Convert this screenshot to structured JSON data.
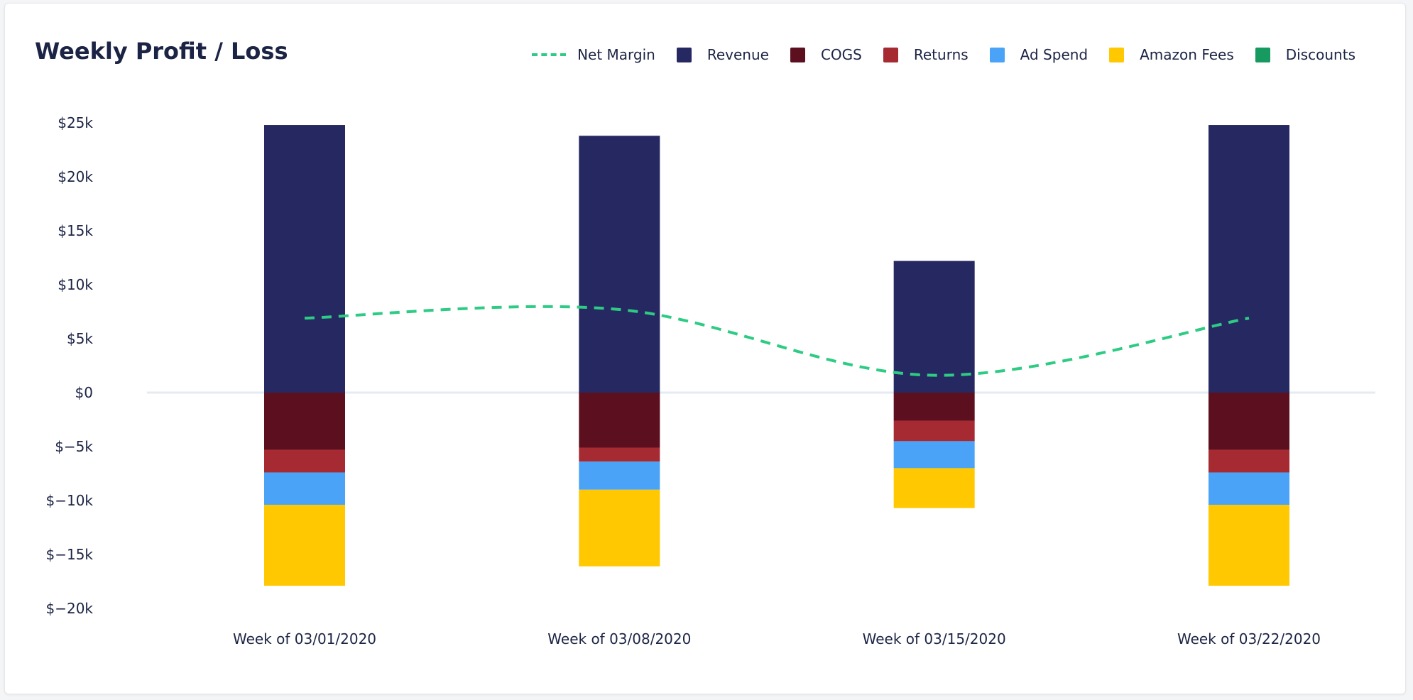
{
  "chart_data": {
    "type": "bar",
    "title": "Weekly Profit / Loss",
    "categories": [
      "Week of 03/01/2020",
      "Week of 03/08/2020",
      "Week of 03/15/2020",
      "Week of 03/22/2020"
    ],
    "series": [
      {
        "name": "Revenue",
        "color": "#262862",
        "values": [
          24800,
          23800,
          12200,
          24800
        ]
      },
      {
        "name": "COGS",
        "color": "#5c0f1e",
        "values": [
          -5300,
          -5100,
          -2600,
          -5300
        ]
      },
      {
        "name": "Returns",
        "color": "#a52a32",
        "values": [
          -2100,
          -1300,
          -1900,
          -2100
        ]
      },
      {
        "name": "Ad Spend",
        "color": "#4aa3f7",
        "values": [
          -3000,
          -2600,
          -2500,
          -3000
        ]
      },
      {
        "name": "Amazon Fees",
        "color": "#ffc800",
        "values": [
          -7500,
          -7100,
          -3700,
          -7500
        ]
      },
      {
        "name": "Discounts",
        "color": "#169a5f",
        "values": [
          0,
          0,
          0,
          0
        ]
      }
    ],
    "line_series": {
      "name": "Net Margin",
      "color": "#2ecb84",
      "style": "dashed",
      "values": [
        6900,
        7700,
        1600,
        6900
      ]
    },
    "y_ticks": [
      {
        "value": 25000,
        "label": "$25k"
      },
      {
        "value": 20000,
        "label": "$20k"
      },
      {
        "value": 15000,
        "label": "$15k"
      },
      {
        "value": 10000,
        "label": "$10k"
      },
      {
        "value": 5000,
        "label": "$5k"
      },
      {
        "value": 0,
        "label": "$0"
      },
      {
        "value": -5000,
        "label": "$−5k"
      },
      {
        "value": -10000,
        "label": "$−10k"
      },
      {
        "value": -15000,
        "label": "$−15k"
      },
      {
        "value": -20000,
        "label": "$−20k"
      }
    ],
    "ylim": [
      -20000,
      25000
    ],
    "barmode": "relative",
    "legend_position": "top-right",
    "grid": false,
    "zero_line": true
  }
}
